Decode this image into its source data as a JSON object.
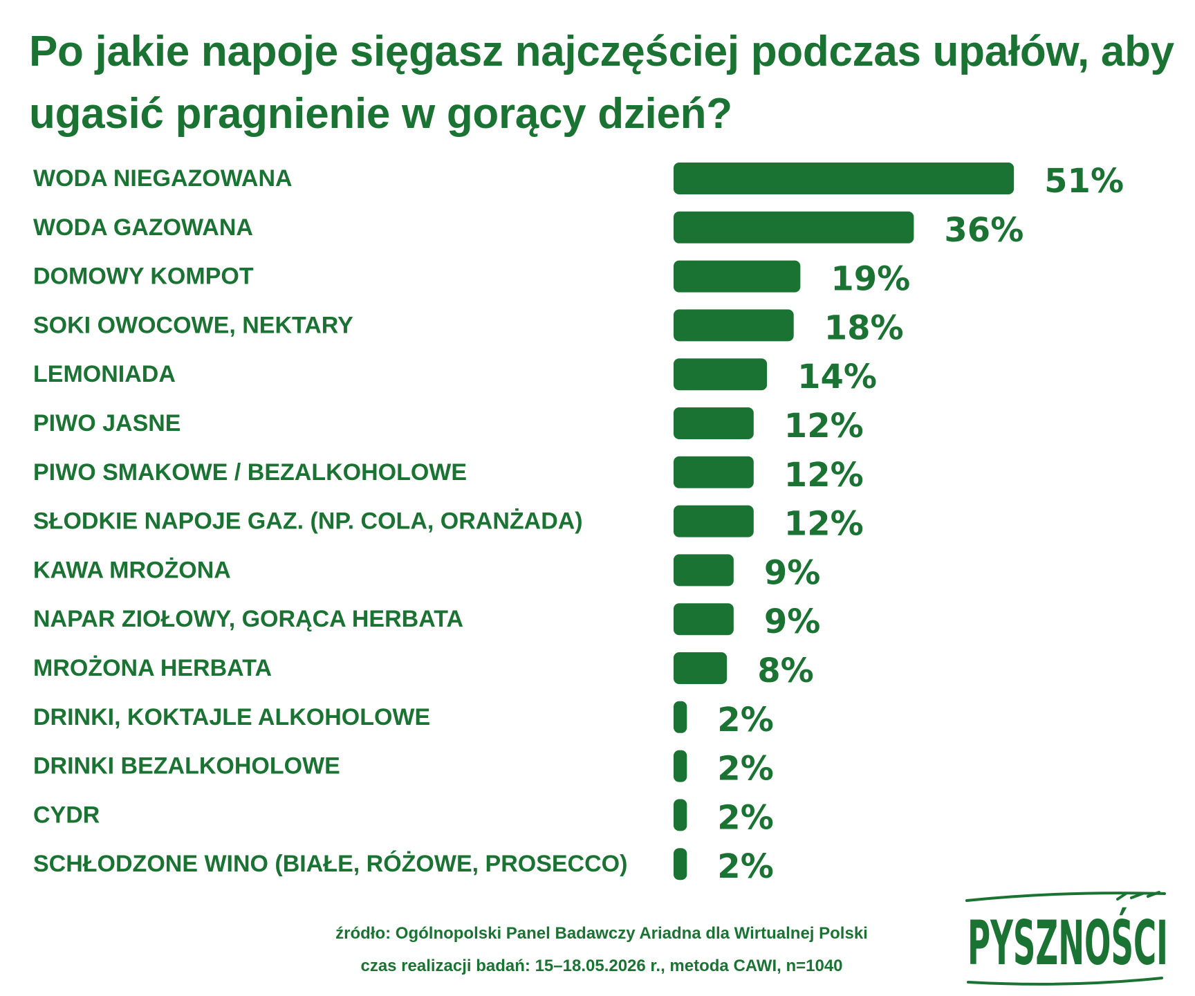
{
  "title": "Po jakie napoje sięgasz najczęściej podczas upałów, aby ugasić pragnienie w gorący dzień?",
  "chart_data": {
    "type": "bar",
    "orientation": "horizontal",
    "title": "Po jakie napoje sięgasz najczęściej podczas upałów, aby ugasić pragnienie w gorący dzień?",
    "categories": [
      "WODA NIEGAZOWANA",
      "WODA GAZOWANA",
      "DOMOWY KOMPOT",
      "SOKI OWOCOWE, NEKTARY",
      "LEMONIADA",
      "PIWO JASNE",
      "PIWO SMAKOWE / BEZALKOHOLOWE",
      "SŁODKIE NAPOJE GAZ. (NP. COLA, ORANŻADA)",
      "KAWA MROŻONA",
      "NAPAR ZIOŁOWY, GORĄCA HERBATA",
      "MROŻONA HERBATA",
      "DRINKI, KOKTAJLE ALKOHOLOWE",
      "DRINKI BEZALKOHOLOWE",
      "CYDR",
      "SCHŁODZONE WINO (BIAŁE, RÓŻOWE, PROSECCO)"
    ],
    "values": [
      51,
      36,
      19,
      18,
      14,
      12,
      12,
      12,
      9,
      9,
      8,
      2,
      2,
      2,
      2
    ],
    "value_labels": [
      "51%",
      "36%",
      "19%",
      "18%",
      "14%",
      "12%",
      "12%",
      "12%",
      "9%",
      "9%",
      "8%",
      "2%",
      "2%",
      "2%",
      "2%"
    ],
    "unit": "%",
    "xlabel": "",
    "ylabel": "",
    "grid": false,
    "bar_color": "#1a7332"
  },
  "footer": {
    "source": "źródło: Ogólnopolski Panel Badawczy Ariadna dla Wirtualnej Polski",
    "meta": "czas realizacji badań: 15–18.05.2026 r., metoda CAWI, n=1040"
  },
  "logo": {
    "text": "PYSZNOŚCI",
    "color": "#1a7332"
  },
  "colors": {
    "primary": "#1a7332",
    "background": "#ffffff"
  }
}
